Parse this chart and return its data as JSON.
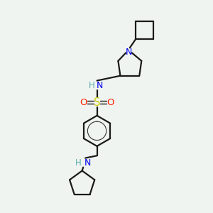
{
  "bg_color": "#f0f4f0",
  "bond_color": "#1a1a1a",
  "N_color": "#0000ee",
  "NH_color": "#5aadad",
  "S_color": "#cccc00",
  "O_color": "#ff2200",
  "bond_width": 1.6,
  "fig_width": 3.0,
  "fig_height": 3.0,
  "dpi": 100,
  "xlim": [
    0,
    10
  ],
  "ylim": [
    0,
    10
  ]
}
